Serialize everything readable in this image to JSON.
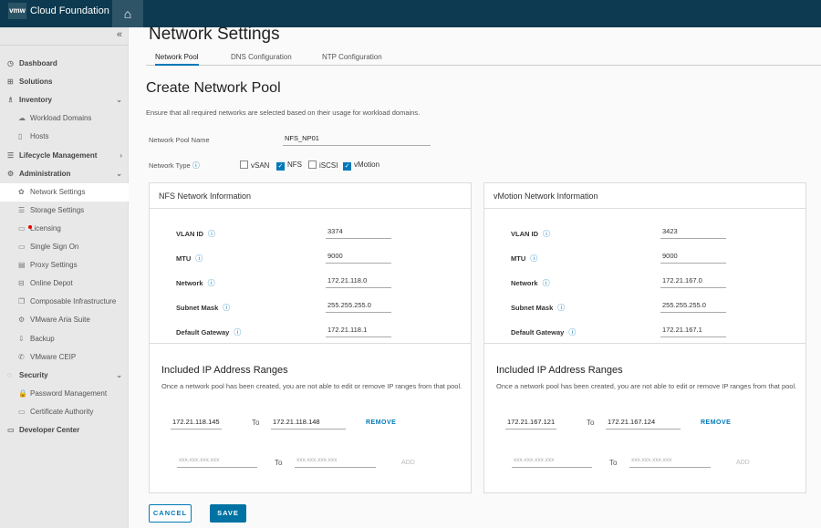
{
  "header": {
    "logo": "vmw",
    "title": "Cloud Foundation",
    "home_icon": "home-icon"
  },
  "sidebar": {
    "items": [
      {
        "label": "Dashboard",
        "level": 1,
        "icon": "◷"
      },
      {
        "label": "Solutions",
        "level": 1,
        "icon": "⊞"
      },
      {
        "label": "Inventory",
        "level": 1,
        "icon": "♗",
        "chevron": "⌄"
      },
      {
        "label": "Workload Domains",
        "level": 2,
        "icon": "☁"
      },
      {
        "label": "Hosts",
        "level": 2,
        "icon": "▯"
      },
      {
        "label": "Lifecycle Management",
        "level": 1,
        "icon": "☰",
        "chevron": "›"
      },
      {
        "label": "Administration",
        "level": 1,
        "icon": "⚙",
        "chevron": "⌄"
      },
      {
        "label": "Network Settings",
        "level": 2,
        "icon": "✿",
        "active": true
      },
      {
        "label": "Storage Settings",
        "level": 2,
        "icon": "☰"
      },
      {
        "label": "Licensing",
        "level": 2,
        "icon": "▭",
        "badge": true
      },
      {
        "label": "Single Sign On",
        "level": 2,
        "icon": "▭"
      },
      {
        "label": "Proxy Settings",
        "level": 2,
        "icon": "▤"
      },
      {
        "label": "Online Depot",
        "level": 2,
        "icon": "⊟"
      },
      {
        "label": "Composable Infrastructure",
        "level": 2,
        "icon": "❐"
      },
      {
        "label": "VMware Aria Suite",
        "level": 2,
        "icon": "⚙"
      },
      {
        "label": "Backup",
        "level": 2,
        "icon": "⇩"
      },
      {
        "label": "VMware CEIP",
        "level": 2,
        "icon": "✆"
      },
      {
        "label": "Security",
        "level": 1,
        "icon": "◌",
        "chevron": "⌄"
      },
      {
        "label": "Password Management",
        "level": 2,
        "icon": "🔒"
      },
      {
        "label": "Certificate Authority",
        "level": 2,
        "icon": "▭"
      },
      {
        "label": "Developer Center",
        "level": 1,
        "icon": "▭"
      }
    ]
  },
  "page": {
    "title": "Network Settings",
    "tabs": [
      "Network Pool",
      "DNS Configuration",
      "NTP Configuration"
    ],
    "active_tab": 0
  },
  "form": {
    "title": "Create Network Pool",
    "description": "Ensure that all required networks are selected based on their usage for workload domains.",
    "pool_name_label": "Network Pool Name",
    "pool_name": "NFS_NP01",
    "network_type_label": "Network Type",
    "types": [
      {
        "label": "vSAN",
        "checked": false
      },
      {
        "label": "NFS",
        "checked": true
      },
      {
        "label": "iSCSI",
        "checked": false
      },
      {
        "label": "vMotion",
        "checked": true
      }
    ]
  },
  "cards": [
    {
      "title": "NFS Network Information",
      "fields": [
        {
          "label": "VLAN ID",
          "value": "3374"
        },
        {
          "label": "MTU",
          "value": "9000"
        },
        {
          "label": "Network",
          "value": "172.21.118.0"
        },
        {
          "label": "Subnet Mask",
          "value": "255.255.255.0"
        },
        {
          "label": "Default Gateway",
          "value": "172.21.118.1"
        }
      ],
      "ip_title": "Included IP Address Ranges",
      "ip_desc": "Once a network pool has been created, you are not able to edit or remove IP ranges from that pool.",
      "from": "172.21.118.145",
      "to_label": "To",
      "to": "172.21.118.148",
      "remove": "REMOVE",
      "placeholder": "xxx.xxx.xxx.xxx",
      "add": "ADD"
    },
    {
      "title": "vMotion Network Information",
      "fields": [
        {
          "label": "VLAN ID",
          "value": "3423"
        },
        {
          "label": "MTU",
          "value": "9000"
        },
        {
          "label": "Network",
          "value": "172.21.167.0"
        },
        {
          "label": "Subnet Mask",
          "value": "255.255.255.0"
        },
        {
          "label": "Default Gateway",
          "value": "172.21.167.1"
        }
      ],
      "ip_title": "Included IP Address Ranges",
      "ip_desc": "Once a network pool has been created, you are not able to edit or remove IP ranges from that pool.",
      "from": "172.21.167.121",
      "to_label": "To",
      "to": "172.21.167.124",
      "remove": "REMOVE",
      "placeholder": "xxx.xxx.xxx.xxx",
      "add": "ADD"
    }
  ],
  "buttons": {
    "cancel": "CANCEL",
    "save": "SAVE"
  },
  "colors": {
    "header": "#0d3a50",
    "accent": "#0079b8",
    "sidebar": "#e8e8e8"
  }
}
